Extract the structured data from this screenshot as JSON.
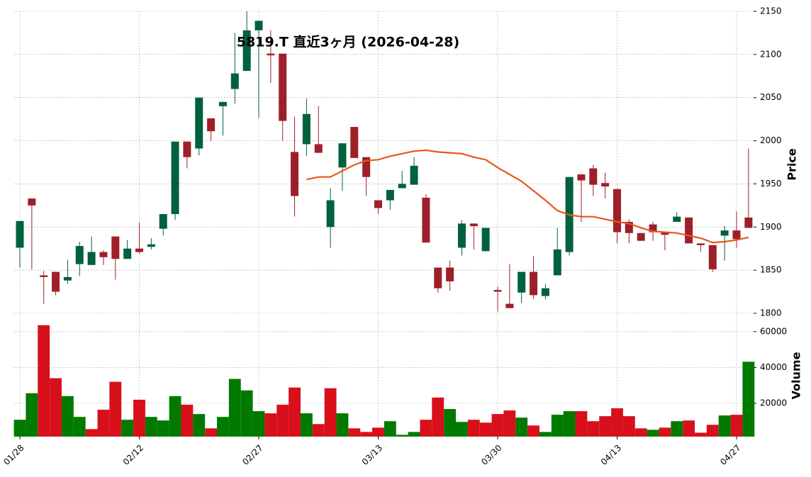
{
  "chart_data": {
    "type": "candlestick",
    "title": "5819.T  直近3ヶ月 (2026-04-28)",
    "categories": [
      "01/28",
      null,
      null,
      null,
      null,
      null,
      null,
      null,
      null,
      null,
      "02/12",
      null,
      null,
      null,
      null,
      null,
      null,
      null,
      null,
      null,
      "02/27",
      null,
      null,
      null,
      null,
      null,
      null,
      null,
      null,
      null,
      "03/13",
      null,
      null,
      null,
      null,
      null,
      null,
      null,
      null,
      null,
      "03/30",
      null,
      null,
      null,
      null,
      null,
      null,
      null,
      null,
      null,
      "04/13",
      null,
      null,
      null,
      null,
      null,
      null,
      null,
      null,
      null,
      "04/27",
      null
    ],
    "open": [
      1876,
      1933,
      1844,
      1848,
      1838,
      1857,
      1856,
      1871,
      1889,
      1863,
      1875,
      1877,
      1898,
      1915,
      1999,
      1991,
      2026,
      2040,
      2060,
      2081,
      2128,
      2101,
      2101,
      1987,
      1996,
      1996,
      1900,
      1969,
      2016,
      1981,
      1931,
      1931,
      1945,
      1949,
      1934,
      1853,
      1853,
      1876,
      1904,
      1872,
      1827,
      1811,
      1824,
      1848,
      1820,
      1844,
      1871,
      1961,
      1968,
      1951,
      1944,
      1906,
      1893,
      1903,
      1894,
      1906,
      1911,
      1881,
      1879,
      1890,
      1896,
      1911
    ],
    "high": [
      1907,
      1933,
      1849,
      1848,
      1862,
      1883,
      1889,
      1873,
      1889,
      1885,
      1905,
      1887,
      1915,
      1999,
      1999,
      2050,
      2026,
      2045,
      2125,
      2150,
      2139,
      2128,
      2101,
      2028,
      2049,
      2040,
      1945,
      1997,
      2016,
      1981,
      1931,
      1943,
      1965,
      1981,
      1938,
      1853,
      1861,
      1908,
      1904,
      1899,
      1831,
      1857,
      1848,
      1866,
      1834,
      1899,
      1958,
      1961,
      1972,
      1963,
      1944,
      1909,
      1893,
      1906,
      1894,
      1917,
      1911,
      1881,
      1879,
      1901,
      1918,
      1991
    ],
    "low": [
      1853,
      1851,
      1811,
      1821,
      1834,
      1843,
      1856,
      1856,
      1839,
      1863,
      1869,
      1874,
      1890,
      1908,
      1968,
      1983,
      2000,
      2006,
      2043,
      2081,
      2026,
      2067,
      2000,
      1912,
      1982,
      1986,
      1876,
      1942,
      1980,
      1936,
      1915,
      1920,
      1945,
      1949,
      1882,
      1824,
      1826,
      1867,
      1874,
      1872,
      1802,
      1806,
      1812,
      1817,
      1816,
      1844,
      1867,
      1906,
      1936,
      1933,
      1881,
      1881,
      1884,
      1884,
      1873,
      1906,
      1881,
      1871,
      1848,
      1861,
      1876,
      1899
    ],
    "close": [
      1907,
      1925,
      1842,
      1825,
      1842,
      1878,
      1871,
      1865,
      1863,
      1875,
      1871,
      1880,
      1915,
      1999,
      1981,
      2050,
      2011,
      2045,
      2078,
      2128,
      2139,
      2099,
      2023,
      1936,
      2031,
      1986,
      1931,
      1997,
      1980,
      1958,
      1922,
      1943,
      1950,
      1971,
      1882,
      1829,
      1837,
      1904,
      1901,
      1899,
      1825,
      1806,
      1848,
      1821,
      1829,
      1874,
      1958,
      1954,
      1949,
      1947,
      1894,
      1893,
      1884,
      1894,
      1891,
      1912,
      1881,
      1879,
      1851,
      1896,
      1886,
      1899
    ],
    "volume": [
      10800,
      25600,
      63600,
      34000,
      24000,
      12400,
      5600,
      16400,
      32000,
      10800,
      22000,
      12400,
      10400,
      24000,
      19200,
      14000,
      6000,
      12400,
      33600,
      27200,
      15600,
      14400,
      19200,
      28800,
      14400,
      8400,
      28400,
      14400,
      6000,
      4000,
      6400,
      10000,
      2400,
      4000,
      10800,
      23200,
      16800,
      9600,
      10800,
      9200,
      14000,
      16000,
      12000,
      7600,
      4000,
      13600,
      15600,
      15600,
      10000,
      12800,
      17200,
      12800,
      6000,
      5200,
      6400,
      10000,
      10400,
      3600,
      8000,
      13200,
      13600,
      43200
    ],
    "candle_colors": {
      "up": "#00613d",
      "down": "#9e1f2a"
    },
    "volume_colors": {
      "up": "#007a00",
      "down": "#d7101b"
    },
    "ma": {
      "color": "#e8561a",
      "values": [
        null,
        null,
        null,
        null,
        null,
        null,
        null,
        null,
        null,
        null,
        null,
        null,
        null,
        null,
        null,
        null,
        null,
        null,
        null,
        null,
        null,
        null,
        null,
        null,
        1955,
        1958,
        1958,
        1965,
        1972,
        1977,
        1978,
        1982,
        1985,
        1988,
        1989,
        1987,
        1986,
        1985,
        1981,
        1978,
        1969,
        1961,
        1953,
        1942,
        1931,
        1919,
        1914,
        1912,
        1912,
        1909,
        1906,
        1904,
        1899,
        1895,
        1894,
        1893,
        1890,
        1887,
        1882,
        1883,
        1885,
        1888
      ]
    },
    "ylabel": "Price",
    "ylim": [
      1800,
      2150
    ],
    "yticks": [
      1800,
      1850,
      1900,
      1950,
      2000,
      2050,
      2100,
      2150
    ],
    "volume_axis": {
      "label": "Volume",
      "ylim": [
        1400,
        65100
      ],
      "yticks": [
        20000,
        40000,
        60000
      ]
    },
    "grid": true
  }
}
